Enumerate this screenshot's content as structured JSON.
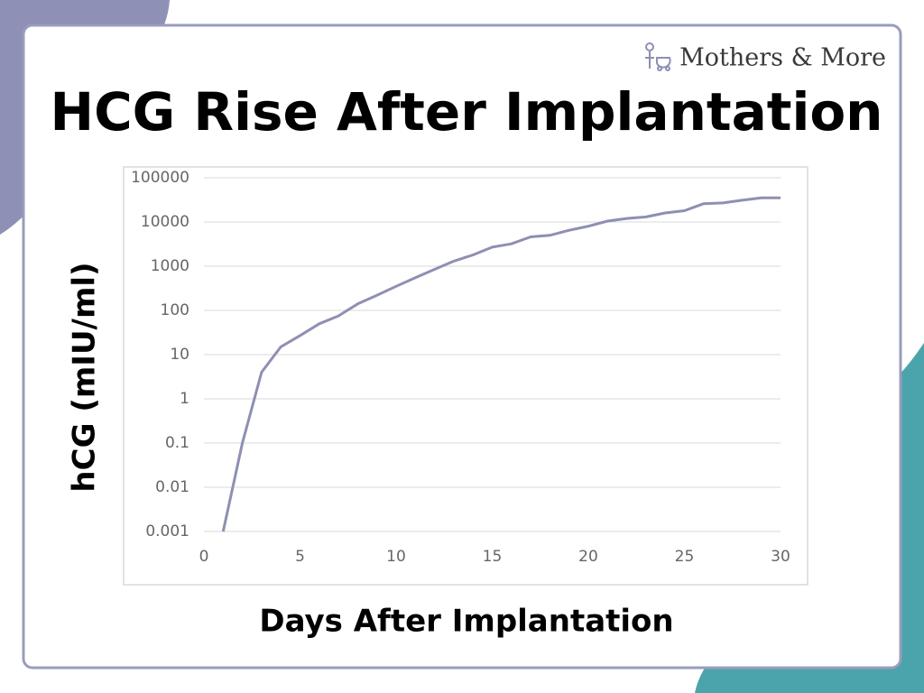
{
  "brand": "Mothers & More",
  "chart_data": {
    "type": "line",
    "title": "HCG Rise After Implantation",
    "x_label": "Days After Implantation",
    "y_label": "hCG (mIU/ml)",
    "x": [
      1,
      2,
      3,
      4,
      5,
      6,
      7,
      8,
      9,
      10,
      11,
      12,
      13,
      14,
      15,
      16,
      17,
      18,
      19,
      20,
      21,
      22,
      23,
      24,
      25,
      26,
      27,
      28,
      29,
      30
    ],
    "series": [
      {
        "name": "hCG",
        "color": "#8e8fb3",
        "values": [
          0.001,
          0.1,
          4,
          15,
          27,
          50,
          75,
          140,
          220,
          350,
          550,
          850,
          1300,
          1800,
          2700,
          3200,
          4600,
          5000,
          6500,
          8000,
          10500,
          12000,
          13000,
          16000,
          18000,
          26000,
          27000,
          31000,
          35000,
          35000
        ]
      }
    ],
    "xlim": [
      0,
      30
    ],
    "xticks": [
      0,
      5,
      10,
      15,
      20,
      25,
      30
    ],
    "ylim": [
      0.001,
      100000
    ],
    "yticks": [
      0.001,
      0.01,
      0.1,
      1,
      10,
      100,
      1000,
      10000,
      100000
    ],
    "log_y": true,
    "grid": true
  }
}
